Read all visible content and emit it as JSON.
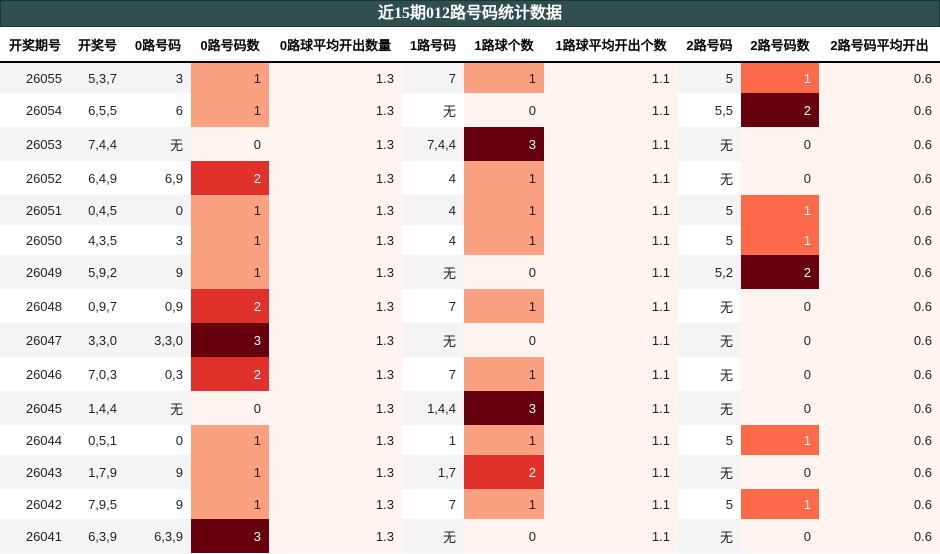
{
  "title": "近15期012路号码统计数据",
  "columns": [
    "开奖期号",
    "开奖号",
    "0路号码",
    "0路号码数",
    "0路球平均开出数量",
    "1路号码",
    "1路球个数",
    "1路球平均开出个数",
    "2路号码",
    "2路号码数",
    "2路号码平均开出"
  ],
  "colors": {
    "header_bg": "#2f4f4f",
    "count_0": "#fff4f0",
    "count_1_light": "#fca082",
    "count_1_mid": "#fc6a4a",
    "count_2_mid": "#e0302a",
    "count_max": "#67000d",
    "avg_bg": "#fff4f0"
  },
  "rows": [
    {
      "issue": "26055",
      "number": "5,3,7",
      "r0": "3",
      "r0n": "1",
      "r0avg": "1.3",
      "r1": "7",
      "r1n": "1",
      "r1avg": "1.1",
      "r2": "5",
      "r2n": "1",
      "r2avg": "0.6"
    },
    {
      "issue": "26054",
      "number": "6,5,5",
      "r0": "6",
      "r0n": "1",
      "r0avg": "1.3",
      "r1": "无",
      "r1n": "0",
      "r1avg": "1.1",
      "r2": "5,5",
      "r2n": "2",
      "r2avg": "0.6"
    },
    {
      "issue": "26053",
      "number": "7,4,4",
      "r0": "无",
      "r0n": "0",
      "r0avg": "1.3",
      "r1": "7,4,4",
      "r1n": "3",
      "r1avg": "1.1",
      "r2": "无",
      "r2n": "0",
      "r2avg": "0.6"
    },
    {
      "issue": "26052",
      "number": "6,4,9",
      "r0": "6,9",
      "r0n": "2",
      "r0avg": "1.3",
      "r1": "4",
      "r1n": "1",
      "r1avg": "1.1",
      "r2": "无",
      "r2n": "0",
      "r2avg": "0.6"
    },
    {
      "issue": "26051",
      "number": "0,4,5",
      "r0": "0",
      "r0n": "1",
      "r0avg": "1.3",
      "r1": "4",
      "r1n": "1",
      "r1avg": "1.1",
      "r2": "5",
      "r2n": "1",
      "r2avg": "0.6"
    },
    {
      "issue": "26050",
      "number": "4,3,5",
      "r0": "3",
      "r0n": "1",
      "r0avg": "1.3",
      "r1": "4",
      "r1n": "1",
      "r1avg": "1.1",
      "r2": "5",
      "r2n": "1",
      "r2avg": "0.6"
    },
    {
      "issue": "26049",
      "number": "5,9,2",
      "r0": "9",
      "r0n": "1",
      "r0avg": "1.3",
      "r1": "无",
      "r1n": "0",
      "r1avg": "1.1",
      "r2": "5,2",
      "r2n": "2",
      "r2avg": "0.6"
    },
    {
      "issue": "26048",
      "number": "0,9,7",
      "r0": "0,9",
      "r0n": "2",
      "r0avg": "1.3",
      "r1": "7",
      "r1n": "1",
      "r1avg": "1.1",
      "r2": "无",
      "r2n": "0",
      "r2avg": "0.6"
    },
    {
      "issue": "26047",
      "number": "3,3,0",
      "r0": "3,3,0",
      "r0n": "3",
      "r0avg": "1.3",
      "r1": "无",
      "r1n": "0",
      "r1avg": "1.1",
      "r2": "无",
      "r2n": "0",
      "r2avg": "0.6"
    },
    {
      "issue": "26046",
      "number": "7,0,3",
      "r0": "0,3",
      "r0n": "2",
      "r0avg": "1.3",
      "r1": "7",
      "r1n": "1",
      "r1avg": "1.1",
      "r2": "无",
      "r2n": "0",
      "r2avg": "0.6"
    },
    {
      "issue": "26045",
      "number": "1,4,4",
      "r0": "无",
      "r0n": "0",
      "r0avg": "1.3",
      "r1": "1,4,4",
      "r1n": "3",
      "r1avg": "1.1",
      "r2": "无",
      "r2n": "0",
      "r2avg": "0.6"
    },
    {
      "issue": "26044",
      "number": "0,5,1",
      "r0": "0",
      "r0n": "1",
      "r0avg": "1.3",
      "r1": "1",
      "r1n": "1",
      "r1avg": "1.1",
      "r2": "5",
      "r2n": "1",
      "r2avg": "0.6"
    },
    {
      "issue": "26043",
      "number": "1,7,9",
      "r0": "9",
      "r0n": "1",
      "r0avg": "1.3",
      "r1": "1,7",
      "r1n": "2",
      "r1avg": "1.1",
      "r2": "无",
      "r2n": "0",
      "r2avg": "0.6"
    },
    {
      "issue": "26042",
      "number": "7,9,5",
      "r0": "9",
      "r0n": "1",
      "r0avg": "1.3",
      "r1": "7",
      "r1n": "1",
      "r1avg": "1.1",
      "r2": "5",
      "r2n": "1",
      "r2avg": "0.6"
    },
    {
      "issue": "26041",
      "number": "6,3,9",
      "r0": "6,3,9",
      "r0n": "3",
      "r0avg": "1.3",
      "r1": "无",
      "r1n": "0",
      "r1avg": "1.1",
      "r2": "无",
      "r2n": "0",
      "r2avg": "0.6"
    }
  ]
}
